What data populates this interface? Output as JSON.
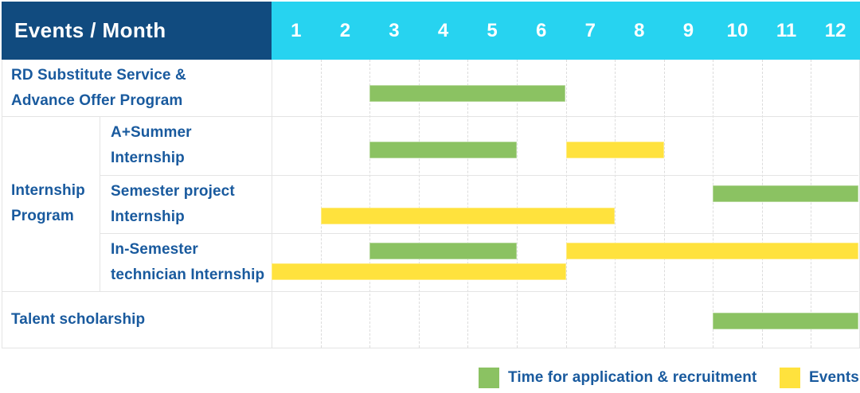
{
  "palette": {
    "navy": "#114B7F",
    "cyan": "#27D3F0",
    "green": "#8BC262",
    "yellow": "#FFE23D",
    "text_blue": "#195A9E",
    "grid": "#E4E4E4"
  },
  "ui": {
    "header": {
      "corner_label": "Events / Month",
      "months": [
        "1",
        "2",
        "3",
        "4",
        "5",
        "6",
        "7",
        "8",
        "9",
        "10",
        "11",
        "12"
      ]
    },
    "group": {
      "label_lines": [
        "Internship",
        "Program"
      ]
    },
    "rows": [
      {
        "label_lines": [
          "RD Substitute Service &",
          "Advance Offer Program"
        ],
        "indent": "main"
      },
      {
        "label_lines": [
          "A+Summer",
          "Internship"
        ],
        "indent": "sub"
      },
      {
        "label_lines": [
          "Semester project",
          "Internship"
        ],
        "indent": "sub"
      },
      {
        "label_lines": [
          "In-Semester",
          "technician Internship"
        ],
        "indent": "sub"
      },
      {
        "label_lines": [
          "Talent scholarship"
        ],
        "indent": "main"
      }
    ],
    "legend": [
      {
        "color_key": "green",
        "label": "Time for application & recruitment"
      },
      {
        "color_key": "yellow",
        "label": "Events"
      }
    ]
  },
  "chart_data": {
    "type": "gantt",
    "title": "Events / Month",
    "x_axis": {
      "label": "Month",
      "ticks": [
        1,
        2,
        3,
        4,
        5,
        6,
        7,
        8,
        9,
        10,
        11,
        12
      ],
      "range": [
        1,
        12
      ]
    },
    "legend": [
      {
        "category": "Time for application & recruitment",
        "color_key": "green"
      },
      {
        "category": "Events",
        "color_key": "yellow"
      }
    ],
    "legend_position": "bottom-right",
    "grid": "on",
    "rows": [
      {
        "event": "RD Substitute Service & Advance Offer Program",
        "group": null,
        "segments": [
          {
            "category": "Time for application & recruitment",
            "color_key": "green",
            "from_month": 3,
            "to_month": 6,
            "lane": "mid"
          }
        ]
      },
      {
        "event": "A+Summer Internship",
        "group": "Internship Program",
        "segments": [
          {
            "category": "Time for application & recruitment",
            "color_key": "green",
            "from_month": 3,
            "to_month": 5,
            "lane": "mid"
          },
          {
            "category": "Events",
            "color_key": "yellow",
            "from_month": 7,
            "to_month": 8,
            "lane": "mid"
          }
        ]
      },
      {
        "event": "Semester project Internship",
        "group": "Internship Program",
        "segments": [
          {
            "category": "Time for application & recruitment",
            "color_key": "green",
            "from_month": 10,
            "to_month": 12,
            "lane": "upper"
          },
          {
            "category": "Events",
            "color_key": "yellow",
            "from_month": 2,
            "to_month": 7,
            "lane": "lower"
          }
        ]
      },
      {
        "event": "In-Semester technician Internship",
        "group": "Internship Program",
        "segments": [
          {
            "category": "Time for application & recruitment",
            "color_key": "green",
            "from_month": 3,
            "to_month": 5,
            "lane": "upper"
          },
          {
            "category": "Events",
            "color_key": "yellow",
            "from_month": 7,
            "to_month": 12,
            "lane": "upper"
          },
          {
            "category": "Events",
            "color_key": "yellow",
            "from_month": 1,
            "to_month": 6,
            "lane": "lower"
          }
        ]
      },
      {
        "event": "Talent scholarship",
        "group": null,
        "segments": [
          {
            "category": "Time for application & recruitment",
            "color_key": "green",
            "from_month": 10,
            "to_month": 12,
            "lane": "mid"
          }
        ]
      }
    ]
  }
}
